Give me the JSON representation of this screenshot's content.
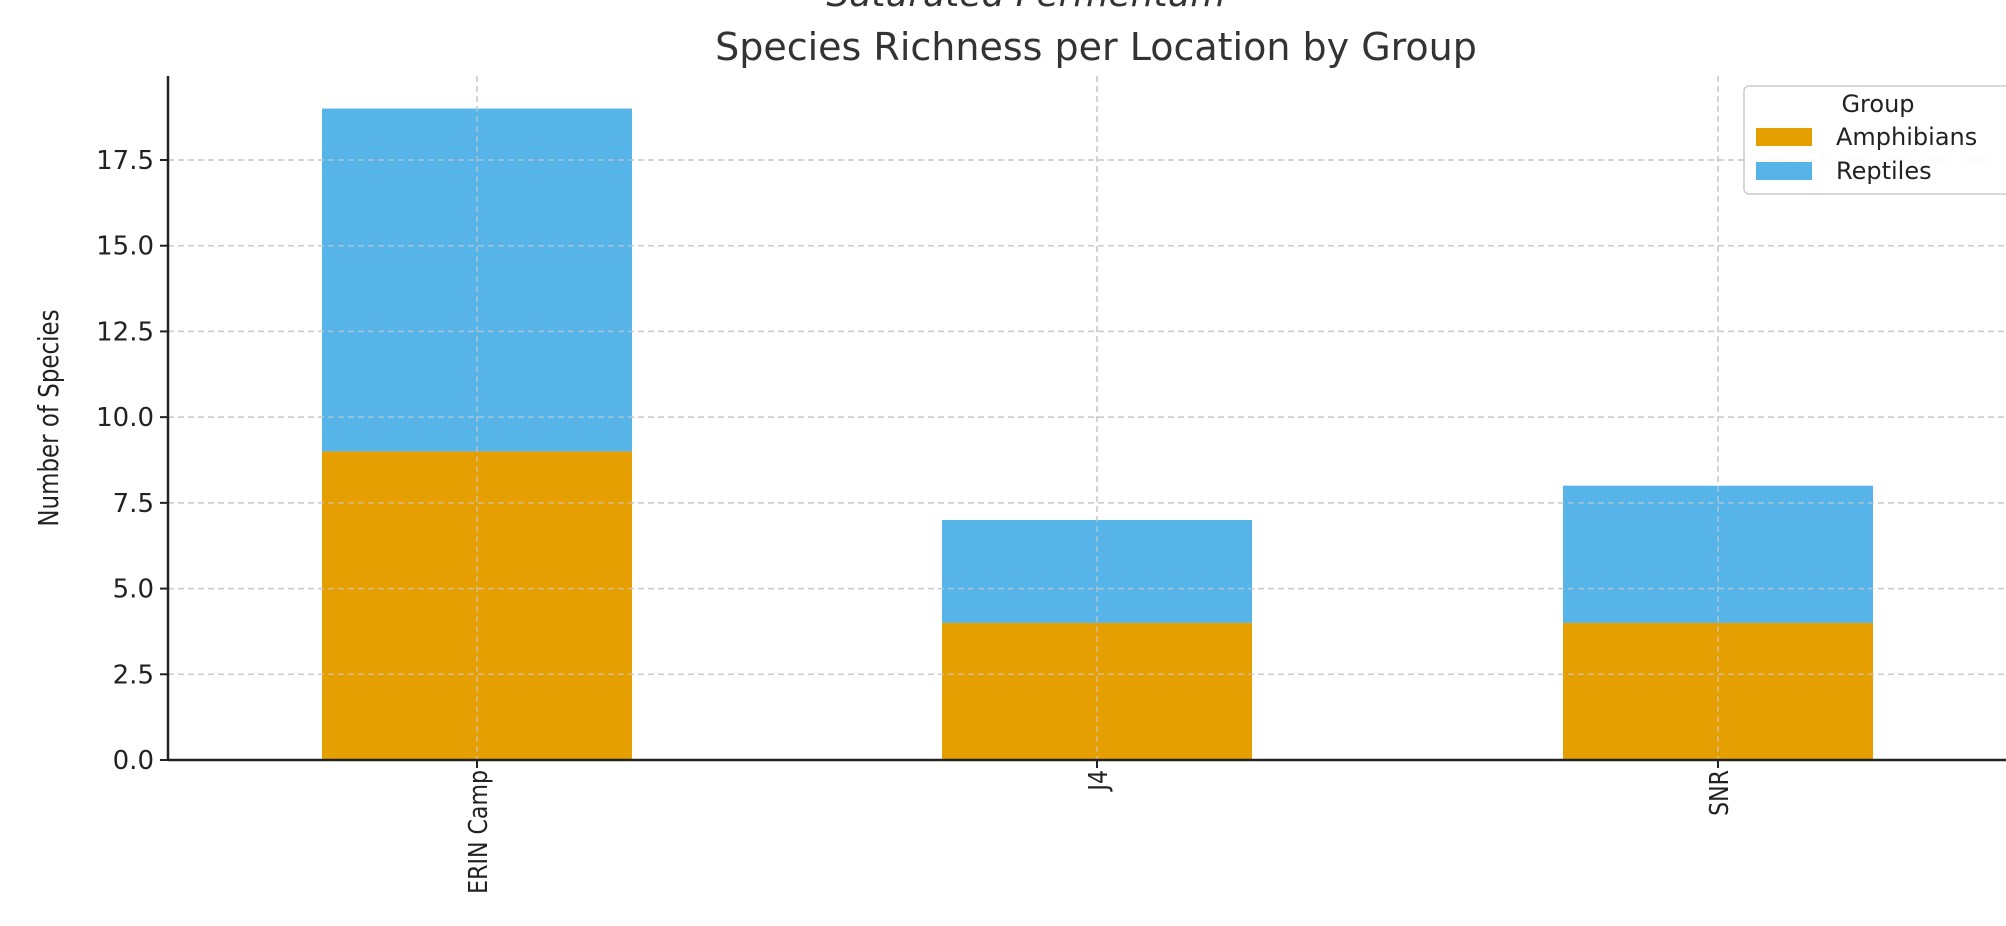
{
  "clipped_title": "Saturated Fermentum",
  "chart_data": {
    "type": "bar",
    "stacked": true,
    "title": "Species Richness per Location by Group",
    "xlabel": "",
    "ylabel": "Number of Species",
    "categories": [
      "ERIN Camp",
      "J4",
      "SNR"
    ],
    "series": [
      {
        "name": "Amphibians",
        "values": [
          9,
          4,
          4
        ],
        "color": "#E69F00"
      },
      {
        "name": "Reptiles",
        "values": [
          10,
          3,
          4
        ],
        "color": "#56B4E9"
      }
    ],
    "ylim": [
      0,
      19.95
    ],
    "yticks": [
      0.0,
      2.5,
      5.0,
      7.5,
      10.0,
      12.5,
      15.0,
      17.5
    ],
    "ytick_labels": [
      "0.0",
      "2.5",
      "5.0",
      "7.5",
      "10.0",
      "12.5",
      "15.0",
      "17.5"
    ],
    "grid": true,
    "legend": {
      "title": "Group",
      "placement": "top-right"
    }
  }
}
